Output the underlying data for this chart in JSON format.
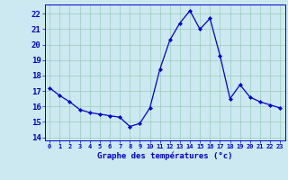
{
  "hours": [
    0,
    1,
    2,
    3,
    4,
    5,
    6,
    7,
    8,
    9,
    10,
    11,
    12,
    13,
    14,
    15,
    16,
    17,
    18,
    19,
    20,
    21,
    22,
    23
  ],
  "temps": [
    17.2,
    16.7,
    16.3,
    15.8,
    15.6,
    15.5,
    15.4,
    15.3,
    14.7,
    14.9,
    15.9,
    18.4,
    20.3,
    21.4,
    22.2,
    21.0,
    21.7,
    19.3,
    16.5,
    17.4,
    16.6,
    16.3,
    16.1,
    15.9
  ],
  "line_color": "#0000cc",
  "bg_color": "#cce8f0",
  "grid_color": "#99ccbb",
  "xlabel": "Graphe des températures (°c)",
  "xlabel_color": "#0000cc",
  "tick_color": "#0000cc",
  "ylim": [
    13.8,
    22.6
  ],
  "xlim": [
    -0.5,
    23.5
  ],
  "yticks": [
    14,
    15,
    16,
    17,
    18,
    19,
    20,
    21,
    22
  ],
  "xticks": [
    0,
    1,
    2,
    3,
    4,
    5,
    6,
    7,
    8,
    9,
    10,
    11,
    12,
    13,
    14,
    15,
    16,
    17,
    18,
    19,
    20,
    21,
    22,
    23
  ],
  "figwidth": 3.2,
  "figheight": 2.0,
  "dpi": 100
}
